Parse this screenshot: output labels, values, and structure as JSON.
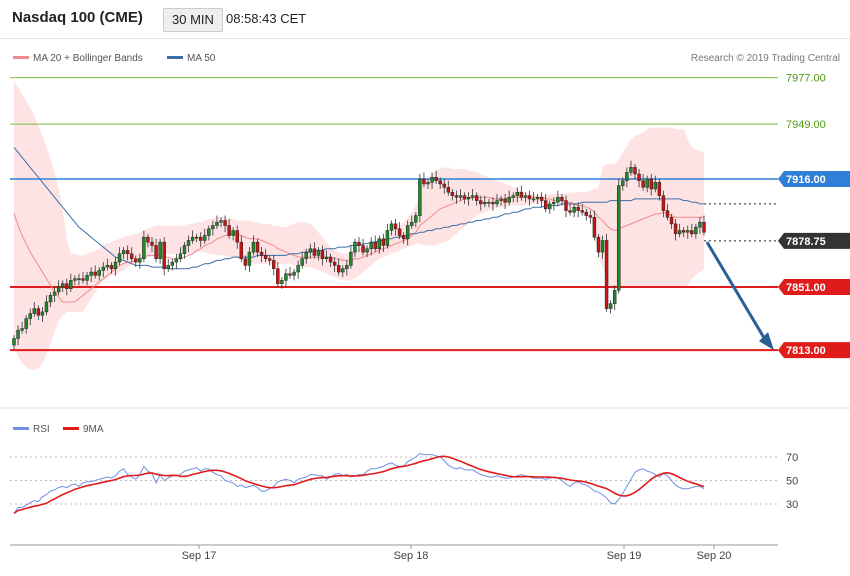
{
  "header": {
    "instrument": "Nasdaq 100 (CME)",
    "timeframe": "30 MIN",
    "time": "08:58:43 CET"
  },
  "legend": {
    "ma_bb_label": "MA 20 + Bollinger Bands",
    "ma50_label": "MA 50",
    "copyright": "Research © 2019 Trading Central"
  },
  "indicator_legend": {
    "rsi_label": "RSI",
    "ma9_label": "9MA"
  },
  "colors": {
    "candle_up": "#1f8a2a",
    "candle_down": "#c91414",
    "ma20": "#f08a8a",
    "bollinger_fill": "#fde3e3",
    "ma50": "#3d6ea8",
    "resistance": "#2f7fd6",
    "support": "#e01b1b",
    "target_line": "#7bbf3f",
    "target_text": "#4f9b14",
    "arrow": "#2c5f95",
    "rsi": "#6e8fe3",
    "rsi_ma": "#e01b1b"
  },
  "chart_data": [
    {
      "type": "candlestick",
      "series": [
        {
          "name": "Nasdaq 100 (CME)"
        }
      ],
      "x_ticks": [
        "Sep 17",
        "Sep 18",
        "Sep 19",
        "Sep 20"
      ],
      "y_range": [
        7800,
        7985
      ],
      "levels": [
        {
          "value": 7977.0,
          "label": "7977.00",
          "kind": "target"
        },
        {
          "value": 7949.0,
          "label": "7949.00",
          "kind": "target"
        },
        {
          "value": 7916.0,
          "label": "7916.00",
          "kind": "resistance"
        },
        {
          "value": 7878.75,
          "label": "7878.75",
          "kind": "last_price"
        },
        {
          "value": 7851.0,
          "label": "7851.00",
          "kind": "support"
        },
        {
          "value": 7813.0,
          "label": "7813.00",
          "kind": "support"
        }
      ],
      "projection": {
        "from": 7878,
        "to": 7813
      },
      "close": [
        7820,
        7825,
        7826,
        7832,
        7835,
        7838,
        7834,
        7836,
        7842,
        7846,
        7848,
        7851,
        7853,
        7850,
        7855,
        7856,
        7856,
        7855,
        7858,
        7860,
        7858,
        7861,
        7863,
        7864,
        7862,
        7866,
        7871,
        7873,
        7871,
        7868,
        7866,
        7868,
        7881,
        7878,
        7876,
        7868,
        7878,
        7862,
        7864,
        7866,
        7868,
        7871,
        7876,
        7879,
        7881,
        7881,
        7879,
        7882,
        7886,
        7888,
        7890,
        7891,
        7888,
        7882,
        7885,
        7878,
        7868,
        7864,
        7872,
        7878,
        7872,
        7870,
        7868,
        7867,
        7862,
        7853,
        7855,
        7859,
        7858,
        7860,
        7864,
        7868,
        7872,
        7874,
        7870,
        7873,
        7868,
        7869,
        7866,
        7864,
        7860,
        7862,
        7864,
        7872,
        7878,
        7876,
        7872,
        7874,
        7878,
        7874,
        7880,
        7876,
        7885,
        7889,
        7886,
        7882,
        7880,
        7888,
        7890,
        7894,
        7916,
        7913,
        7914,
        7917,
        7915,
        7913,
        7911,
        7908,
        7906,
        7905,
        7906,
        7904,
        7905,
        7906,
        7903,
        7901,
        7902,
        7902,
        7901,
        7903,
        7904,
        7902,
        7905,
        7906,
        7908,
        7905,
        7906,
        7904,
        7904,
        7905,
        7903,
        7898,
        7901,
        7902,
        7905,
        7903,
        7897,
        7896,
        7899,
        7897,
        7896,
        7894,
        7893,
        7881,
        7872,
        7879,
        7838,
        7841,
        7849,
        7912,
        7915,
        7920,
        7923,
        7919,
        7915,
        7911,
        7916,
        7910,
        7914,
        7906,
        7897,
        7893,
        7889,
        7883,
        7885,
        7884,
        7885,
        7883,
        7887,
        7890,
        7884
      ],
      "ma20": [
        7895,
        7888,
        7882,
        7877,
        7872,
        7868,
        7864,
        7860,
        7856,
        7852,
        7848,
        7845,
        7842,
        7842,
        7842,
        7842,
        7844,
        7846,
        7848,
        7850,
        7852,
        7854,
        7856,
        7858,
        7860,
        7862,
        7864,
        7865,
        7866,
        7866,
        7867,
        7868,
        7869,
        7870,
        7870,
        7870,
        7870,
        7869,
        7869,
        7868,
        7868,
        7868,
        7869,
        7870,
        7871,
        7873,
        7874,
        7876,
        7877,
        7878,
        7880,
        7881,
        7882,
        7882,
        7883,
        7883,
        7882,
        7881,
        7880,
        7880,
        7880,
        7879,
        7878,
        7877,
        7876,
        7874,
        7873,
        7872,
        7871,
        7870,
        7869,
        7869,
        7869,
        7869,
        7869,
        7869,
        7869,
        7869,
        7869,
        7868,
        7868,
        7867,
        7867,
        7867,
        7868,
        7868,
        7869,
        7870,
        7871,
        7872,
        7873,
        7874,
        7875,
        7876,
        7877,
        7878,
        7879,
        7880,
        7882,
        7884,
        7888,
        7890,
        7892,
        7894,
        7896,
        7898,
        7899,
        7900,
        7901,
        7902,
        7903,
        7904,
        7904,
        7905,
        7905,
        7905,
        7905,
        7905,
        7904,
        7904,
        7904,
        7904,
        7905,
        7905,
        7905,
        7905,
        7905,
        7905,
        7905,
        7905,
        7905,
        7904,
        7904,
        7903,
        7903,
        7903,
        7902,
        7902,
        7901,
        7900,
        7900,
        7899,
        7898,
        7896,
        7893,
        7891,
        7888,
        7886,
        7885,
        7886,
        7887,
        7888,
        7889,
        7890,
        7891,
        7892,
        7893,
        7894,
        7895,
        7895,
        7896,
        7895,
        7894,
        7893,
        7893,
        7893,
        7893,
        7893,
        7893,
        7893,
        7893
      ],
      "bb_upper": [
        7975,
        7971,
        7967,
        7963,
        7959,
        7954,
        7948,
        7942,
        7935,
        7928,
        7920,
        7910,
        7898,
        7880,
        7871,
        7871,
        7870,
        7870,
        7871,
        7872,
        7873,
        7874,
        7876,
        7877,
        7878,
        7879,
        7880,
        7881,
        7882,
        7882,
        7883,
        7884,
        7885,
        7886,
        7887,
        7888,
        7888,
        7888,
        7888,
        7888,
        7888,
        7888,
        7888,
        7889,
        7889,
        7890,
        7890,
        7891,
        7892,
        7892,
        7893,
        7893,
        7893,
        7892,
        7892,
        7891,
        7891,
        7891,
        7891,
        7890,
        7890,
        7889,
        7889,
        7889,
        7888,
        7888,
        7887,
        7887,
        7888,
        7889,
        7890,
        7890,
        7890,
        7889,
        7887,
        7884,
        7881,
        7878,
        7875,
        7873,
        7872,
        7871,
        7871,
        7872,
        7873,
        7874,
        7875,
        7876,
        7877,
        7878,
        7879,
        7880,
        7882,
        7884,
        7886,
        7888,
        7890,
        7893,
        7896,
        7900,
        7908,
        7914,
        7917,
        7919,
        7921,
        7922,
        7923,
        7923,
        7922,
        7922,
        7922,
        7922,
        7921,
        7921,
        7920,
        7919,
        7918,
        7917,
        7916,
        7915,
        7914,
        7913,
        7912,
        7911,
        7910,
        7909,
        7908,
        7907,
        7907,
        7906,
        7906,
        7906,
        7907,
        7907,
        7907,
        7907,
        7907,
        7908,
        7908,
        7908,
        7908,
        7908,
        7909,
        7910,
        7911,
        7923,
        7925,
        7925,
        7925,
        7928,
        7932,
        7936,
        7940,
        7942,
        7943,
        7944,
        7946,
        7947,
        7947,
        7947,
        7947,
        7947,
        7947,
        7946,
        7946,
        7946,
        7940,
        7935,
        7934,
        7933,
        7932
      ],
      "bb_lower": [
        7815,
        7809,
        7805,
        7803,
        7801,
        7801,
        7802,
        7805,
        7810,
        7817,
        7824,
        7830,
        7834,
        7836,
        7836,
        7836,
        7836,
        7836,
        7840,
        7844,
        7848,
        7852,
        7855,
        7856,
        7858,
        7858,
        7860,
        7861,
        7863,
        7864,
        7866,
        7868,
        7868,
        7869,
        7869,
        7870,
        7871,
        7871,
        7871,
        7871,
        7871,
        7871,
        7871,
        7871,
        7871,
        7872,
        7872,
        7872,
        7871,
        7871,
        7870,
        7870,
        7870,
        7869,
        7869,
        7868,
        7868,
        7867,
        7866,
        7865,
        7865,
        7865,
        7865,
        7865,
        7865,
        7865,
        7865,
        7865,
        7865,
        7864,
        7864,
        7864,
        7863,
        7863,
        7862,
        7861,
        7860,
        7859,
        7858,
        7857,
        7856,
        7855,
        7855,
        7855,
        7856,
        7858,
        7860,
        7862,
        7864,
        7866,
        7868,
        7869,
        7870,
        7871,
        7872,
        7873,
        7874,
        7875,
        7876,
        7877,
        7877,
        7876,
        7876,
        7876,
        7876,
        7877,
        7878,
        7879,
        7881,
        7883,
        7885,
        7887,
        7889,
        7892,
        7894,
        7895,
        7896,
        7897,
        7898,
        7899,
        7899,
        7899,
        7900,
        7900,
        7900,
        7900,
        7900,
        7901,
        7901,
        7901,
        7901,
        7902,
        7902,
        7902,
        7902,
        7902,
        7900,
        7899,
        7898,
        7897,
        7896,
        7895,
        7894,
        7882,
        7870,
        7863,
        7856,
        7850,
        7850,
        7851,
        7851,
        7851,
        7851,
        7851,
        7851,
        7851,
        7851,
        7851,
        7851,
        7851,
        7851,
        7851,
        7851,
        7851,
        7851,
        7851,
        7852,
        7856,
        7858,
        7860,
        7862
      ],
      "ma50": [
        7935,
        7932,
        7929,
        7926,
        7923,
        7920,
        7917,
        7914,
        7911,
        7908,
        7905,
        7902,
        7899,
        7896,
        7893,
        7890,
        7887,
        7885,
        7883,
        7881,
        7879,
        7877,
        7875,
        7873,
        7871,
        7869,
        7868,
        7867,
        7866,
        7865,
        7864,
        7864,
        7864,
        7864,
        7863,
        7863,
        7863,
        7863,
        7862,
        7862,
        7862,
        7862,
        7862,
        7862,
        7863,
        7863,
        7864,
        7865,
        7865,
        7866,
        7867,
        7867,
        7868,
        7868,
        7869,
        7869,
        7869,
        7869,
        7869,
        7869,
        7870,
        7870,
        7870,
        7870,
        7870,
        7870,
        7870,
        7870,
        7871,
        7871,
        7871,
        7872,
        7872,
        7872,
        7873,
        7873,
        7873,
        7874,
        7874,
        7874,
        7875,
        7875,
        7875,
        7876,
        7876,
        7876,
        7877,
        7877,
        7878,
        7878,
        7879,
        7879,
        7880,
        7880,
        7881,
        7881,
        7882,
        7882,
        7883,
        7883,
        7884,
        7884,
        7885,
        7885,
        7886,
        7886,
        7887,
        7887,
        7888,
        7888,
        7889,
        7889,
        7890,
        7890,
        7891,
        7891,
        7892,
        7892,
        7893,
        7893,
        7894,
        7895,
        7895,
        7896,
        7896,
        7897,
        7898,
        7898,
        7899,
        7899,
        7899,
        7900,
        7900,
        7900,
        7900,
        7901,
        7901,
        7901,
        7901,
        7901,
        7902,
        7902,
        7902,
        7902,
        7902,
        7902,
        7902,
        7903,
        7903,
        7903,
        7903,
        7903,
        7903,
        7904,
        7904,
        7904,
        7904,
        7904,
        7904,
        7904,
        7904,
        7904,
        7904,
        7904,
        7904,
        7903,
        7903,
        7902,
        7902,
        7901,
        7901
      ]
    },
    {
      "type": "line",
      "series": [
        {
          "name": "RSI"
        },
        {
          "name": "9MA"
        }
      ],
      "y_ticks": [
        70,
        50,
        30
      ],
      "y_range": [
        15,
        80
      ],
      "rsi": [
        22,
        27,
        27,
        29,
        31,
        33,
        32,
        36,
        38,
        41,
        42,
        44,
        45,
        44,
        46,
        47,
        45,
        48,
        49,
        49,
        50,
        51,
        52,
        53,
        52,
        54,
        58,
        60,
        55,
        53,
        51,
        55,
        62,
        58,
        56,
        48,
        55,
        50,
        52,
        54,
        54,
        55,
        58,
        59,
        60,
        61,
        58,
        60,
        60,
        57,
        55,
        54,
        50,
        49,
        48,
        45,
        46,
        44,
        45,
        46,
        44,
        41,
        41,
        43,
        45,
        49,
        50,
        51,
        50,
        48,
        51,
        52,
        53,
        55,
        55,
        54,
        54,
        51,
        53,
        55,
        56,
        54,
        55,
        53,
        54,
        55,
        55,
        58,
        60,
        60,
        61,
        62,
        64,
        65,
        63,
        62,
        62,
        66,
        68,
        70,
        73,
        72,
        72,
        72,
        71,
        70,
        67,
        63,
        61,
        60,
        61,
        59,
        59,
        59,
        57,
        55,
        54,
        53,
        53,
        54,
        53,
        52,
        52,
        53,
        54,
        55,
        54,
        53,
        52,
        52,
        52,
        51,
        52,
        53,
        52,
        50,
        47,
        45,
        48,
        49,
        47,
        46,
        44,
        41,
        40,
        38,
        35,
        31,
        30,
        34,
        39,
        45,
        51,
        57,
        59,
        60,
        58,
        57,
        55,
        53,
        56,
        54,
        50,
        46,
        44,
        43,
        43,
        44,
        45,
        45,
        43
      ]
    }
  ]
}
